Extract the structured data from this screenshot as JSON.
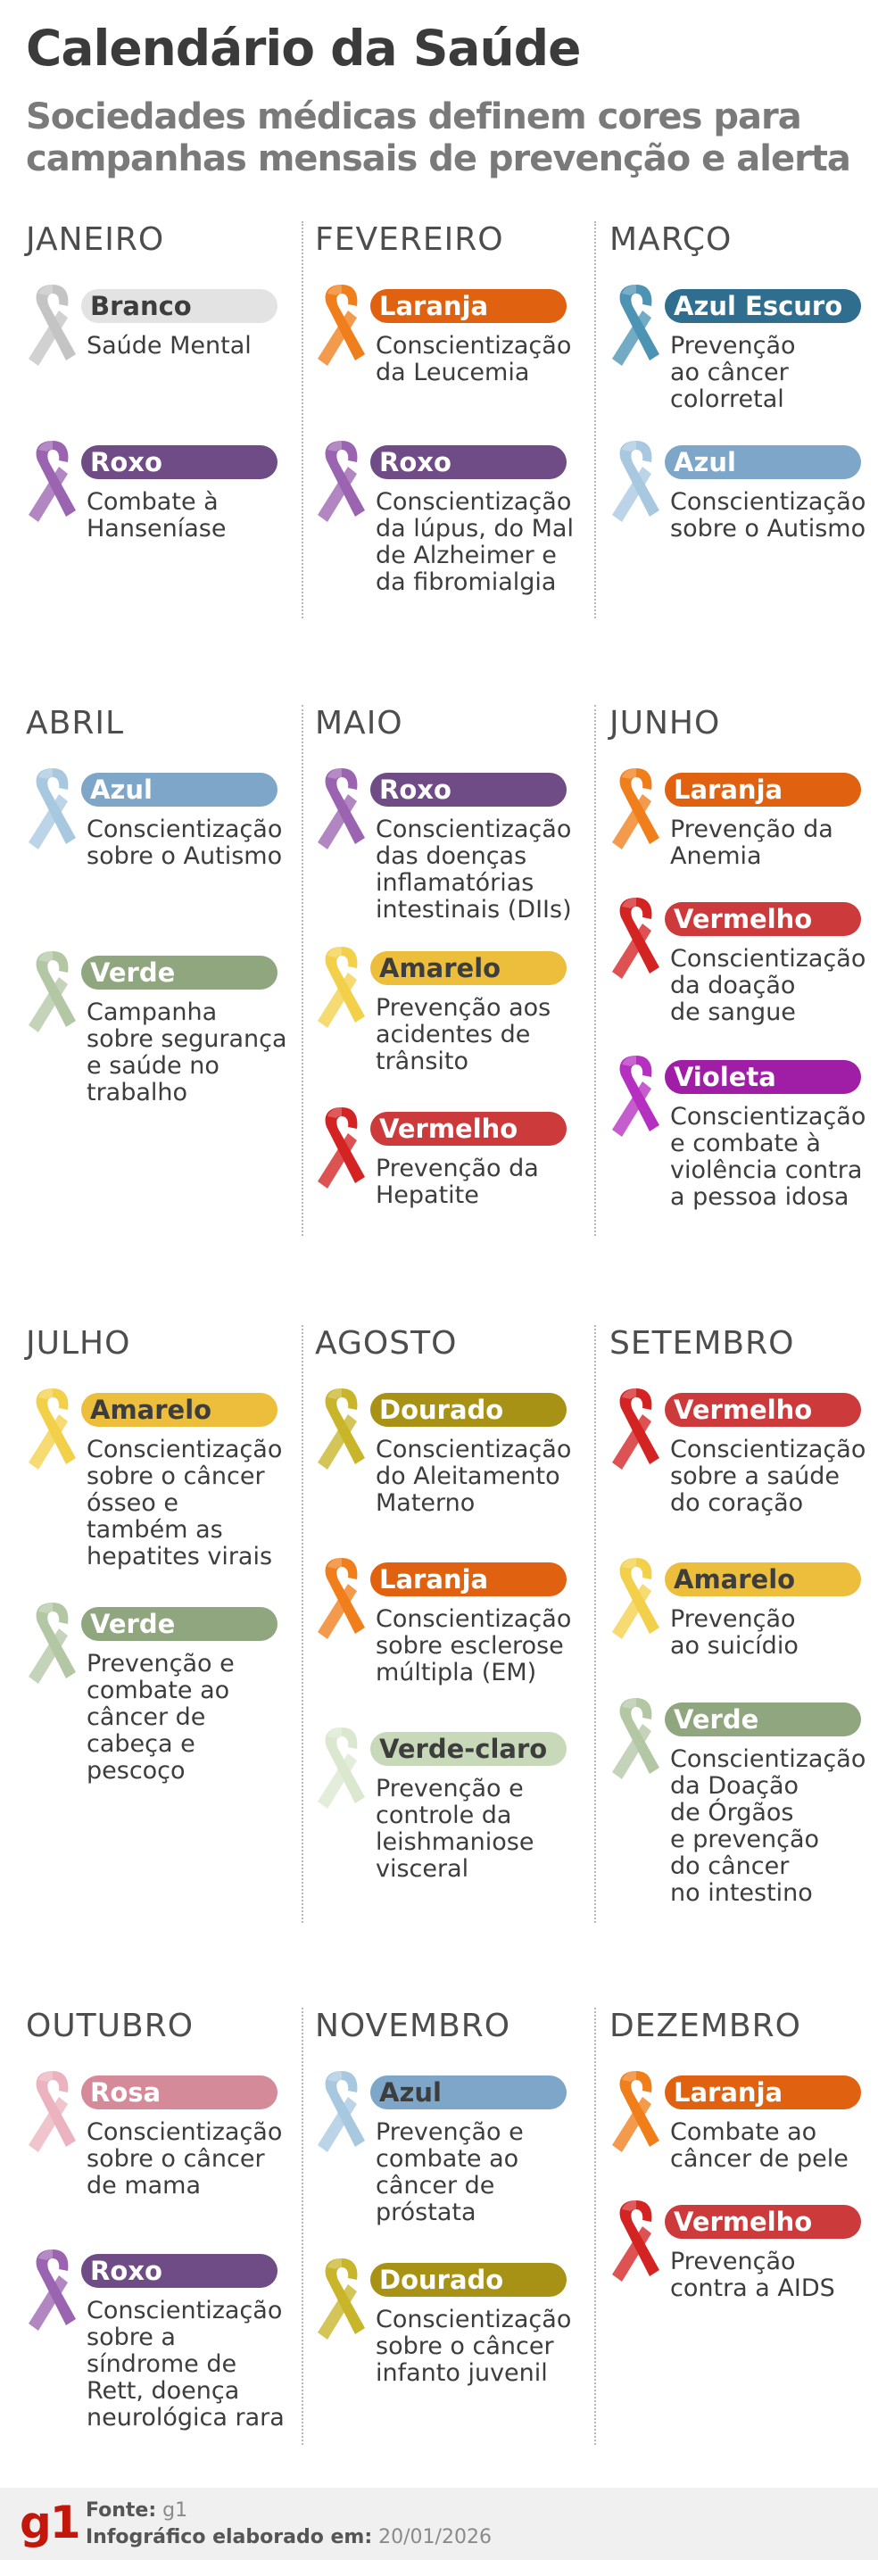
{
  "header": {
    "title": "Calendário da Saúde",
    "subtitle": "Sociedades médicas definem cores para campanhas mensais de prevenção e alerta"
  },
  "colors": {
    "branco": "#dcdcdc",
    "roxo": "#6f4c85",
    "laranja": "#e0610f",
    "azul_escuro": "#2f6e8e",
    "azul": "#7ea6c8",
    "verde": "#8fa67f",
    "amarelo": "#ecbe3c",
    "vermelho": "#cc3a3c",
    "violeta": "#a01da6",
    "dourado": "#a89215",
    "verde_claro": "#c8d9b9",
    "rosa": "#d58a99"
  },
  "months": [
    {
      "name": "JANEIRO",
      "campaigns": [
        {
          "color_name": "Branco",
          "ribbon": "#c4c4c4",
          "pill": "#e3e3e3",
          "text_color": "#3d3d3d",
          "description": "Saúde Mental"
        },
        {
          "color_name": "Roxo",
          "ribbon": "#9b64b0",
          "pill": "#6f4c85",
          "text_color": "#ffffff",
          "description": "Combate à\nHanseníase"
        }
      ]
    },
    {
      "name": "FEVEREIRO",
      "campaigns": [
        {
          "color_name": "Laranja",
          "ribbon": "#f07e1b",
          "pill": "#e0610f",
          "text_color": "#ffffff",
          "description": "Conscientização\nda Leucemia"
        },
        {
          "color_name": "Roxo",
          "ribbon": "#9b64b0",
          "pill": "#6f4c85",
          "text_color": "#ffffff",
          "description": "Conscientização\nda lúpus, do Mal\nde Alzheimer e\nda fibromialgia"
        }
      ]
    },
    {
      "name": "MARÇO",
      "campaigns": [
        {
          "color_name": "Azul Escuro",
          "ribbon": "#4c93b4",
          "pill": "#2f6e8e",
          "text_color": "#ffffff",
          "description": "Prevenção\nao câncer\ncolorretal"
        },
        {
          "color_name": "Azul",
          "ribbon": "#a8c8e0",
          "pill": "#7ea6c8",
          "text_color": "#ffffff",
          "description": "Conscientização\nsobre o Autismo"
        }
      ]
    },
    {
      "name": "ABRIL",
      "campaigns": [
        {
          "color_name": "Azul",
          "ribbon": "#a8c8e0",
          "pill": "#7ea6c8",
          "text_color": "#ffffff",
          "description": "Conscientização\nsobre o Autismo"
        },
        {
          "color_name": "Verde",
          "ribbon": "#b3c7a5",
          "pill": "#8fa67f",
          "text_color": "#ffffff",
          "description": "Campanha\nsobre segurança\ne saúde no\ntrabalho"
        }
      ]
    },
    {
      "name": "MAIO",
      "campaigns": [
        {
          "color_name": "Roxo",
          "ribbon": "#9b64b0",
          "pill": "#6f4c85",
          "text_color": "#ffffff",
          "description": "Conscientização\ndas doenças\ninflamatórias\nintestinais (DIIs)"
        },
        {
          "color_name": "Amarelo",
          "ribbon": "#f3d04a",
          "pill": "#ecbe3c",
          "text_color": "#3d3d3d",
          "description": "Prevenção aos\nacidentes de\ntrânsito"
        },
        {
          "color_name": "Vermelho",
          "ribbon": "#d42323",
          "pill": "#cc3a3c",
          "text_color": "#ffffff",
          "description": "Prevenção da\nHepatite"
        }
      ]
    },
    {
      "name": "JUNHO",
      "campaigns": [
        {
          "color_name": "Laranja",
          "ribbon": "#f07e1b",
          "pill": "#e0610f",
          "text_color": "#ffffff",
          "description": "Prevenção da\nAnemia"
        },
        {
          "color_name": "Vermelho",
          "ribbon": "#d42323",
          "pill": "#cc3a3c",
          "text_color": "#ffffff",
          "description": "Conscientização\nda doação\nde sangue"
        },
        {
          "color_name": "Violeta",
          "ribbon": "#b530c0",
          "pill": "#a01da6",
          "text_color": "#ffffff",
          "description": "Conscientização\ne combate à\nviolência contra\na pessoa idosa"
        }
      ]
    },
    {
      "name": "JULHO",
      "campaigns": [
        {
          "color_name": "Amarelo",
          "ribbon": "#f3d04a",
          "pill": "#ecbe3c",
          "text_color": "#3d3d3d",
          "description": "Conscientização\nsobre o câncer\nósseo e\ntambém as\nhepatites virais"
        },
        {
          "color_name": "Verde",
          "ribbon": "#b3c7a5",
          "pill": "#8fa67f",
          "text_color": "#ffffff",
          "description": "Prevenção e\ncombate ao\ncâncer de\ncabeça e\npescoço"
        }
      ]
    },
    {
      "name": "AGOSTO",
      "campaigns": [
        {
          "color_name": "Dourado",
          "ribbon": "#c8b52a",
          "pill": "#a89215",
          "text_color": "#ffffff",
          "description": "Conscientização\ndo Aleitamento\nMaterno"
        },
        {
          "color_name": "Laranja",
          "ribbon": "#f07e1b",
          "pill": "#e0610f",
          "text_color": "#ffffff",
          "description": "Conscientização\nsobre esclerose\nmúltipla (EM)"
        },
        {
          "color_name": "Verde-claro",
          "ribbon": "#dbe8cf",
          "pill": "#c8d9b9",
          "text_color": "#3d3d3d",
          "description": "Prevenção e\ncontrole da\nleishmaniose\nvisceral"
        }
      ]
    },
    {
      "name": "SETEMBRO",
      "campaigns": [
        {
          "color_name": "Vermelho",
          "ribbon": "#d42323",
          "pill": "#cc3a3c",
          "text_color": "#ffffff",
          "description": "Conscientização\nsobre a saúde\ndo coração"
        },
        {
          "color_name": "Amarelo",
          "ribbon": "#f3d04a",
          "pill": "#ecbe3c",
          "text_color": "#3d3d3d",
          "description": "Prevenção\nao suicídio"
        },
        {
          "color_name": "Verde",
          "ribbon": "#b3c7a5",
          "pill": "#8fa67f",
          "text_color": "#ffffff",
          "description": "Conscientização\nda Doação\nde Órgãos\ne prevenção\ndo câncer\nno intestino"
        }
      ]
    },
    {
      "name": "OUTUBRO",
      "campaigns": [
        {
          "color_name": "Rosa",
          "ribbon": "#eab3bf",
          "pill": "#d58a99",
          "text_color": "#ffffff",
          "description": "Conscientização\nsobre o câncer\nde mama"
        },
        {
          "color_name": "Roxo",
          "ribbon": "#9b64b0",
          "pill": "#6f4c85",
          "text_color": "#ffffff",
          "description": "Conscientização\nsobre a\nsíndrome de\nRett, doença\nneurológica rara"
        }
      ]
    },
    {
      "name": "NOVEMBRO",
      "campaigns": [
        {
          "color_name": "Azul",
          "ribbon": "#a8c8e0",
          "pill": "#7ea6c8",
          "text_color": "#3d3d3d",
          "description": "Prevenção e\ncombate ao\ncâncer de\npróstata"
        },
        {
          "color_name": "Dourado",
          "ribbon": "#c8b52a",
          "pill": "#a89215",
          "text_color": "#ffffff",
          "description": "Conscientização\nsobre o câncer\ninfanto juvenil"
        }
      ]
    },
    {
      "name": "DEZEMBRO",
      "campaigns": [
        {
          "color_name": "Laranja",
          "ribbon": "#f07e1b",
          "pill": "#e0610f",
          "text_color": "#ffffff",
          "description": "Combate ao\ncâncer de pele"
        },
        {
          "color_name": "Vermelho",
          "ribbon": "#d42323",
          "pill": "#cc3a3c",
          "text_color": "#ffffff",
          "description": "Prevenção\ncontra a AIDS"
        }
      ]
    }
  ],
  "footer": {
    "logo": "g1",
    "source_label": "Fonte:",
    "source_value": "g1",
    "date_label": "Infográfico elaborado em:",
    "date_value": "20/01/2026"
  }
}
